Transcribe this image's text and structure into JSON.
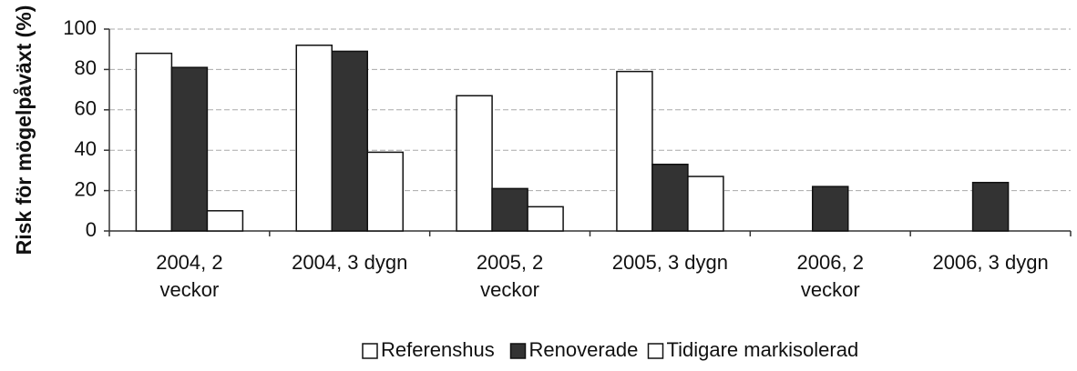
{
  "chart_data": {
    "type": "bar",
    "y_label": "Risk för mögelpåväxt (%)",
    "categories": [
      "2004, 2 veckor",
      "2004, 3 dygn",
      "2005, 2 veckor",
      "2005, 3 dygn",
      "2006, 2 veckor",
      "2006, 3 dygn"
    ],
    "series": [
      {
        "name": "Referenshus",
        "color": "#ffffff",
        "values": [
          88,
          92,
          67,
          79,
          null,
          null
        ]
      },
      {
        "name": "Renoverade",
        "color": "#333333",
        "values": [
          81,
          89,
          21,
          33,
          22,
          24
        ]
      },
      {
        "name": "Tidigare markisolerad",
        "color": "#ffffff",
        "values": [
          10,
          39,
          12,
          27,
          null,
          null
        ]
      }
    ],
    "ylim": [
      0,
      100
    ],
    "yticks": [
      0,
      20,
      40,
      60,
      80,
      100
    ],
    "grid": true,
    "legend": "bottom"
  }
}
